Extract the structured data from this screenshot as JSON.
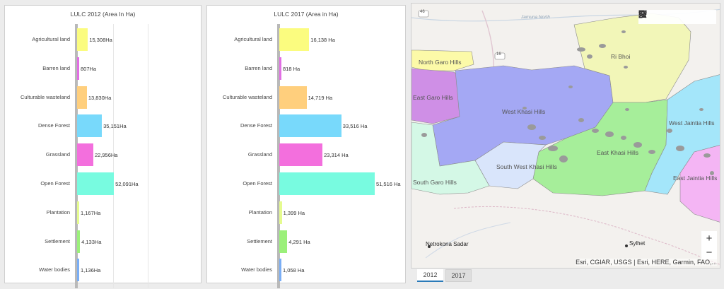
{
  "charts": [
    {
      "title": "LULC 2012 (Area In Ha)",
      "items": [
        {
          "label": "Agricultural land",
          "value": 15308,
          "text": "15,308Ha",
          "color": "#fbfc7f"
        },
        {
          "label": "Barren land",
          "value": 807,
          "text": "807Ha",
          "color": "#e16fe4"
        },
        {
          "label": "Culturable wasteland",
          "value": 13830,
          "text": "13,830Ha",
          "color": "#ffcf7d"
        },
        {
          "label": "Dense Forest",
          "value": 35151,
          "text": "35,151Ha",
          "color": "#78d9fb"
        },
        {
          "label": "Grassland",
          "value": 22956,
          "text": "22,956Ha",
          "color": "#f36fdd"
        },
        {
          "label": "Open Forest",
          "value": 52091,
          "text": "52,091Ha",
          "color": "#78fbe0"
        },
        {
          "label": "Plantation",
          "value": 1167,
          "text": "1,167Ha",
          "color": "#e5fb8f"
        },
        {
          "label": "Settlement",
          "value": 4133,
          "text": "4,133Ha",
          "color": "#9bf07a"
        },
        {
          "label": "Water bodies",
          "value": 1136,
          "text": "1,136Ha",
          "color": "#7aaef5"
        }
      ]
    },
    {
      "title": "LULC 2017 (Area in Ha)",
      "items": [
        {
          "label": "Agricultural land",
          "value": 16138,
          "text": "16,138 Ha",
          "color": "#fbfc7f"
        },
        {
          "label": "Barren land",
          "value": 818,
          "text": "818 Ha",
          "color": "#e16fe4"
        },
        {
          "label": "Culturable wasteland",
          "value": 14719,
          "text": "14,719 Ha",
          "color": "#ffcf7d"
        },
        {
          "label": "Dense Forest",
          "value": 33516,
          "text": "33,516 Ha",
          "color": "#78d9fb"
        },
        {
          "label": "Grassland",
          "value": 23314,
          "text": "23,314 Ha",
          "color": "#f36fdd"
        },
        {
          "label": "Open Forest",
          "value": 51516,
          "text": "51,516 Ha",
          "color": "#78fbe0"
        },
        {
          "label": "Plantation",
          "value": 1399,
          "text": "1,399 Ha",
          "color": "#e5fb8f"
        },
        {
          "label": "Settlement",
          "value": 4291,
          "text": "4,291 Ha",
          "color": "#9bf07a"
        },
        {
          "label": "Water bodies",
          "value": 1058,
          "text": "1,058 Ha",
          "color": "#7aaef5"
        }
      ]
    }
  ],
  "map": {
    "labels": {
      "north_garo": "North Garo Hills",
      "east_garo": "East Garo Hills",
      "west_khasi": "West Khasi Hills",
      "ri_bhoi": "Ri Bhoi",
      "west_jaintia": "West Jaintia Hills",
      "east_khasi": "East Khasi Hills",
      "south_west_khasi": "South West Khasi Hills",
      "south_garo": "South Garo Hills",
      "east_jaintia": "East Jaintia Hills",
      "netrokona": "Netrokona Sadar",
      "sylhet": "Sylhet",
      "river": "Jamuna North",
      "road_46": "46",
      "road_16": "16"
    },
    "toolbar_icons": [
      "search-icon",
      "home-icon",
      "legend-list-icon",
      "layers-icon",
      "qr-code-icon"
    ],
    "zoom_in": "+",
    "zoom_out": "−",
    "attribution": "Esri, CGIAR, USGS | Esri, HERE, Garmin, FAO,..."
  },
  "tabs": {
    "tab_2012": "2012",
    "tab_2017": "2017"
  },
  "colors": {
    "active_tab_underline": "#2a7ab8"
  }
}
